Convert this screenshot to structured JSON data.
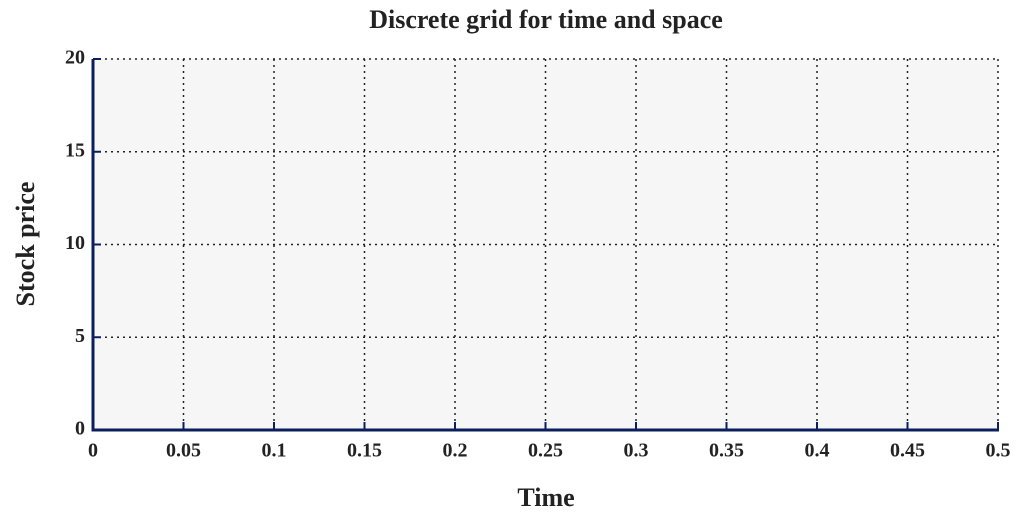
{
  "chart_data": {
    "type": "line",
    "title": "Discrete grid for time and space",
    "xlabel": "Time",
    "ylabel": "Stock price",
    "xlim": [
      0,
      0.5
    ],
    "ylim": [
      0,
      20
    ],
    "xticks": [
      0,
      0.05,
      0.1,
      0.15,
      0.2,
      0.25,
      0.3,
      0.35,
      0.4,
      0.45,
      0.5
    ],
    "yticks": [
      0,
      5,
      10,
      15,
      20
    ],
    "grid": true
  }
}
